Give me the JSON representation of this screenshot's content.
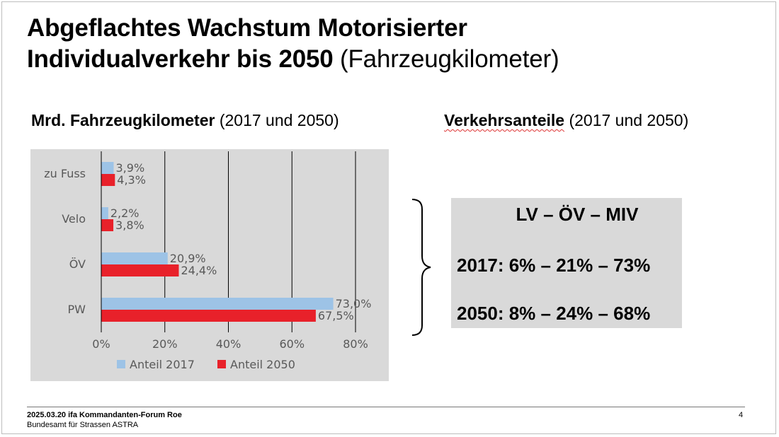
{
  "slide": {
    "title_bold_line1": "Abgeflachtes Wachstum Motorisierter",
    "title_bold_line2": "Individualverkehr bis 2050",
    "title_normal": " (Fahrzeugkilometer)",
    "left_heading_bold": "Mrd. Fahrzeugkilometer",
    "left_heading_normal": " (2017 und 2050)",
    "right_heading_bold": "Verkehrsanteile",
    "right_heading_normal": " (2017 und 2050)"
  },
  "share_box": {
    "header": "LV – ÖV – MIV",
    "row_2017": "2017: 6% – 21% – 73%",
    "row_2050": "2050: 8% – 24% – 68%"
  },
  "footer": {
    "line1": "2025.03.20 ifa Kommandanten-Forum Roe",
    "line2": "Bundesamt für Strassen ASTRA",
    "page_number": "4"
  },
  "colors": {
    "series_2017": "#9dc3e6",
    "series_2050": "#e8212a",
    "chart_background": "#d9d9d9"
  },
  "chart_data": {
    "type": "bar",
    "orientation": "horizontal",
    "categories": [
      "zu Fuss",
      "Velo",
      "ÖV",
      "PW"
    ],
    "series": [
      {
        "name": "Anteil 2017",
        "values": [
          3.9,
          2.2,
          20.9,
          73.0
        ],
        "labels": [
          "3,9%",
          "2,2%",
          "20,9%",
          "73,0%"
        ]
      },
      {
        "name": "Anteil 2050",
        "values": [
          4.3,
          3.8,
          24.4,
          67.5
        ],
        "labels": [
          "4,3%",
          "3,8%",
          "24,4%",
          "67,5%"
        ]
      }
    ],
    "x_ticks": [
      "0%",
      "20%",
      "40%",
      "60%",
      "80%"
    ],
    "xlim": [
      0,
      80
    ],
    "grid": "vertical",
    "legend": "bottom"
  }
}
